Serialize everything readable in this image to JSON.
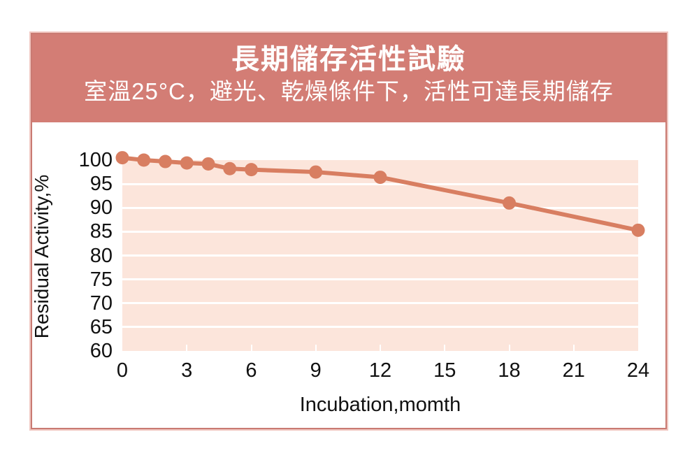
{
  "header": {
    "title": "長期儲存活性試驗",
    "subtitle": "室溫25°C，避光、乾燥條件下，活性可達長期儲存"
  },
  "chart_data": {
    "type": "line",
    "title": "長期儲存活性試驗",
    "subtitle": "室溫25°C，避光、乾燥條件下，活性可達長期儲存",
    "x": [
      0,
      1,
      2,
      3,
      4,
      5,
      6,
      9,
      12,
      18,
      24
    ],
    "values": [
      100.5,
      100,
      99.7,
      99.4,
      99.2,
      98.2,
      98,
      97.5,
      96.4,
      91,
      85.3
    ],
    "xlabel": "Incubation,momth",
    "ylabel": "Residual Activity,%",
    "x_ticks": [
      0,
      3,
      6,
      9,
      12,
      15,
      18,
      21,
      24
    ],
    "y_ticks": [
      100,
      95,
      90,
      85,
      80,
      75,
      70,
      65,
      60
    ],
    "xlim": [
      0,
      24
    ],
    "ylim": [
      60,
      100
    ],
    "grid": "horizontal-white-lines",
    "legend": "none",
    "marker": "circle"
  },
  "colors": {
    "header_bg": "#d37d75",
    "header_text": "#ffffff",
    "frame_border": "#c97a72",
    "frame_halo": "#f0c6c0",
    "plot_bg": "#fce5db",
    "line": "#d87e61",
    "gridline": "#ffffff",
    "tick_text": "#111111"
  }
}
